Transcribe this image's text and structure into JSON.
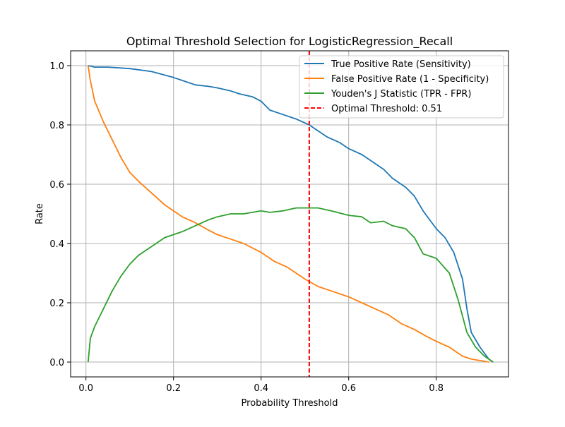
{
  "chart_data": {
    "type": "line",
    "title": "Optimal Threshold Selection for LogisticRegression_Recall",
    "xlabel": "Probability Threshold",
    "ylabel": "Rate",
    "xlim": [
      -0.035,
      0.965
    ],
    "ylim": [
      -0.05,
      1.05
    ],
    "xticks": [
      {
        "value": 0.0,
        "label": "0.0"
      },
      {
        "value": 0.2,
        "label": "0.2"
      },
      {
        "value": 0.4,
        "label": "0.4"
      },
      {
        "value": 0.6,
        "label": "0.6"
      },
      {
        "value": 0.8,
        "label": "0.8"
      }
    ],
    "yticks": [
      {
        "value": 0.0,
        "label": "0.0"
      },
      {
        "value": 0.2,
        "label": "0.2"
      },
      {
        "value": 0.4,
        "label": "0.4"
      },
      {
        "value": 0.6,
        "label": "0.6"
      },
      {
        "value": 0.8,
        "label": "0.8"
      },
      {
        "value": 1.0,
        "label": "1.0"
      }
    ],
    "grid": true,
    "legend_position": "top-right",
    "series": [
      {
        "name": "True Positive Rate (Sensitivity)",
        "color": "#1f77b4",
        "style": "solid",
        "x": [
          0.005,
          0.02,
          0.05,
          0.1,
          0.15,
          0.2,
          0.23,
          0.25,
          0.28,
          0.3,
          0.33,
          0.35,
          0.38,
          0.4,
          0.42,
          0.45,
          0.48,
          0.51,
          0.53,
          0.55,
          0.58,
          0.6,
          0.63,
          0.65,
          0.68,
          0.7,
          0.73,
          0.75,
          0.77,
          0.79,
          0.8,
          0.82,
          0.84,
          0.86,
          0.87,
          0.88,
          0.9,
          0.92,
          0.93
        ],
        "y": [
          1.0,
          0.995,
          0.995,
          0.99,
          0.98,
          0.96,
          0.945,
          0.935,
          0.93,
          0.925,
          0.915,
          0.905,
          0.895,
          0.88,
          0.85,
          0.835,
          0.82,
          0.8,
          0.78,
          0.76,
          0.74,
          0.72,
          0.7,
          0.68,
          0.65,
          0.62,
          0.59,
          0.56,
          0.51,
          0.47,
          0.45,
          0.42,
          0.37,
          0.28,
          0.18,
          0.1,
          0.05,
          0.01,
          0.0
        ]
      },
      {
        "name": "False Positive Rate (1 - Specificity)",
        "color": "#ff7f0e",
        "style": "solid",
        "x": [
          0.005,
          0.01,
          0.02,
          0.04,
          0.06,
          0.08,
          0.1,
          0.12,
          0.15,
          0.18,
          0.2,
          0.22,
          0.25,
          0.28,
          0.3,
          0.33,
          0.36,
          0.4,
          0.43,
          0.46,
          0.5,
          0.53,
          0.56,
          0.6,
          0.63,
          0.66,
          0.69,
          0.72,
          0.75,
          0.78,
          0.8,
          0.83,
          0.86,
          0.88,
          0.9,
          0.92
        ],
        "y": [
          1.0,
          0.95,
          0.88,
          0.81,
          0.75,
          0.69,
          0.64,
          0.61,
          0.57,
          0.53,
          0.51,
          0.49,
          0.47,
          0.445,
          0.43,
          0.415,
          0.4,
          0.37,
          0.34,
          0.32,
          0.28,
          0.255,
          0.24,
          0.22,
          0.2,
          0.18,
          0.16,
          0.13,
          0.11,
          0.085,
          0.07,
          0.05,
          0.02,
          0.01,
          0.005,
          0.0
        ]
      },
      {
        "name": "Youden's J Statistic (TPR - FPR)",
        "color": "#2ca02c",
        "style": "solid",
        "x": [
          0.005,
          0.01,
          0.02,
          0.04,
          0.06,
          0.08,
          0.1,
          0.12,
          0.15,
          0.18,
          0.2,
          0.22,
          0.25,
          0.28,
          0.3,
          0.33,
          0.36,
          0.38,
          0.4,
          0.42,
          0.45,
          0.48,
          0.51,
          0.53,
          0.56,
          0.6,
          0.63,
          0.65,
          0.68,
          0.7,
          0.73,
          0.75,
          0.77,
          0.8,
          0.83,
          0.85,
          0.87,
          0.89,
          0.91,
          0.93
        ],
        "y": [
          0.0,
          0.08,
          0.12,
          0.18,
          0.24,
          0.29,
          0.33,
          0.36,
          0.39,
          0.42,
          0.43,
          0.44,
          0.46,
          0.48,
          0.49,
          0.5,
          0.5,
          0.505,
          0.51,
          0.505,
          0.51,
          0.52,
          0.52,
          0.52,
          0.51,
          0.495,
          0.49,
          0.47,
          0.475,
          0.46,
          0.45,
          0.42,
          0.365,
          0.35,
          0.3,
          0.21,
          0.1,
          0.05,
          0.02,
          0.0
        ]
      },
      {
        "name": "Optimal Threshold: 0.51",
        "color": "#ff0000",
        "style": "dashed",
        "vline_x": 0.51
      }
    ]
  }
}
